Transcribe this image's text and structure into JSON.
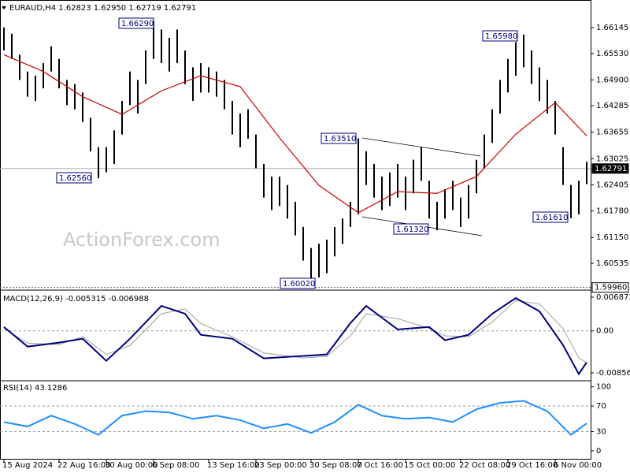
{
  "watermark": "ActionForex.com",
  "chart_data": [
    {
      "type": "range",
      "title": "EURAUD,H4 1.62823 1.62950 1.62719 1.62791",
      "color": "#000000",
      "categories": [
        "15 Aug 2024",
        null,
        null,
        null,
        null,
        null,
        null,
        "22 Aug 16:00",
        null,
        null,
        null,
        null,
        null,
        "30 Aug 00:00",
        null,
        null,
        null,
        null,
        null,
        "6 Sep 08:00",
        null,
        null,
        null,
        null,
        null,
        null,
        "13 Sep 16:00",
        null,
        null,
        null,
        null,
        null,
        "23 Sep 00:00",
        null,
        null,
        null,
        null,
        null,
        null,
        "30 Sep 08:00",
        null,
        null,
        null,
        null,
        null,
        "7 Oct 16:00",
        null,
        null,
        null,
        null,
        null,
        "15 Oct 00:00",
        null,
        null,
        null,
        null,
        null,
        null,
        "22 Oct 08:00",
        null,
        null,
        null,
        null,
        null,
        "29 Oct 16:00",
        null,
        null,
        null,
        null,
        null,
        "6 Nov 00:00",
        null,
        null,
        null,
        null
      ],
      "high": [
        1.6615,
        1.66,
        1.655,
        1.651,
        1.65,
        1.653,
        1.657,
        1.654,
        1.649,
        1.648,
        1.646,
        1.64,
        1.633,
        1.633,
        1.637,
        1.644,
        1.651,
        1.649,
        1.656,
        1.6629,
        1.661,
        1.659,
        1.661,
        1.656,
        1.652,
        1.653,
        1.652,
        1.651,
        1.649,
        1.644,
        1.641,
        1.642,
        1.636,
        1.629,
        1.626,
        1.626,
        1.624,
        1.62,
        1.614,
        1.609,
        1.61,
        1.611,
        1.614,
        1.616,
        1.62,
        1.6351,
        1.632,
        1.629,
        1.626,
        1.627,
        1.629,
        1.626,
        1.63,
        1.633,
        1.625,
        1.62,
        1.623,
        1.625,
        1.621,
        1.624,
        1.63,
        1.636,
        1.642,
        1.649,
        1.654,
        1.658,
        1.6598,
        1.656,
        1.652,
        1.649,
        1.644,
        1.633,
        1.624,
        1.625,
        1.6295
      ],
      "low": [
        1.656,
        1.654,
        1.649,
        1.645,
        1.644,
        1.647,
        1.651,
        1.647,
        1.643,
        1.642,
        1.639,
        1.632,
        1.6256,
        1.627,
        1.629,
        1.636,
        1.643,
        1.641,
        1.648,
        1.654,
        1.653,
        1.651,
        1.653,
        1.648,
        1.644,
        1.646,
        1.646,
        1.645,
        1.642,
        1.636,
        1.633,
        1.635,
        1.628,
        1.621,
        1.618,
        1.619,
        1.616,
        1.612,
        1.606,
        1.6002,
        1.602,
        1.603,
        1.607,
        1.61,
        1.614,
        1.617,
        1.624,
        1.621,
        1.618,
        1.619,
        1.621,
        1.618,
        1.622,
        1.625,
        1.616,
        1.6132,
        1.616,
        1.618,
        1.614,
        1.616,
        1.622,
        1.628,
        1.634,
        1.641,
        1.646,
        1.65,
        1.652,
        1.648,
        1.644,
        1.641,
        1.636,
        1.624,
        1.6161,
        1.617,
        1.6242
      ],
      "ma": {
        "color": "#cc0000",
        "x": [
          0,
          5,
          10,
          15,
          20,
          25,
          30,
          35,
          40,
          45,
          50,
          55,
          60,
          65,
          70,
          74
        ],
        "values": [
          1.655,
          1.651,
          1.645,
          1.6408,
          1.6464,
          1.65,
          1.6474,
          1.6352,
          1.6239,
          1.6174,
          1.6224,
          1.622,
          1.626,
          1.6361,
          1.6436,
          1.6357
        ]
      },
      "ylim": [
        1.59935,
        1.66802
      ],
      "yticks": [
        1.66145,
        {
          "value": 1.6553,
          "label": "1.65530"
        },
        {
          "value": 1.649,
          "label": "1.64900"
        },
        1.64285,
        1.63655,
        1.63025,
        1.62405,
        {
          "value": 1.6178,
          "label": "1.61780"
        },
        {
          "value": 1.6115,
          "label": "1.61150"
        },
        1.60535
      ],
      "level": {
        "value": 1.5996,
        "label": "1.59960"
      },
      "last_price": {
        "value": 1.62791,
        "label": "1.62791"
      },
      "annotations": [
        "1.66290",
        "1.62560",
        "1.63510",
        "1.61320",
        "1.60020",
        "1.65980",
        "1.61610"
      ]
    },
    {
      "type": "line",
      "title": "MACD(12,26,9) -0.005315 -0.006988",
      "series": [
        {
          "color": "#000080",
          "x": [
            0,
            3,
            7,
            10,
            13,
            16,
            20,
            23,
            25,
            29,
            33,
            38,
            41,
            44,
            46,
            50,
            54,
            56,
            59,
            62,
            65,
            68,
            71,
            73,
            74
          ],
          "values": [
            0.0008,
            -0.0032,
            -0.0024,
            -0.0016,
            -0.0061,
            -0.0016,
            0.0051,
            0.0035,
            -0.0008,
            -0.0016,
            -0.0056,
            -0.0051,
            -0.0048,
            0.0016,
            0.0051,
            0.0003,
            0.0008,
            -0.0019,
            -0.0008,
            0.0035,
            0.0067,
            0.004,
            -0.0029,
            -0.0088,
            -0.0064
          ]
        },
        {
          "color": "#a0a0a0",
          "x": [
            0,
            3,
            7,
            10,
            13,
            16,
            20,
            23,
            25,
            29,
            33,
            38,
            41,
            44,
            46,
            50,
            54,
            56,
            59,
            62,
            65,
            68,
            71,
            73,
            74
          ],
          "values": [
            0.0005,
            -0.0025,
            -0.0028,
            -0.0012,
            -0.0048,
            -0.003,
            0.0035,
            0.0045,
            0.0015,
            -0.0012,
            -0.0045,
            -0.0055,
            -0.0052,
            -0.001,
            0.0035,
            0.0025,
            0.0005,
            -0.001,
            -0.0012,
            0.0018,
            0.0062,
            0.0055,
            0.0005,
            -0.0055,
            -0.0065
          ]
        }
      ],
      "ylim": [
        -0.00969,
        0.008
      ],
      "yticks": [
        0.006873,
        {
          "value": 0,
          "label": "0.00"
        },
        -0.00856
      ],
      "levels": [
        0
      ]
    },
    {
      "type": "line",
      "title": "RSI(14) 43.1286",
      "series": [
        {
          "color": "#1e90ff",
          "x": [
            0,
            3,
            6,
            9,
            12,
            15,
            18,
            21,
            24,
            27,
            30,
            33,
            36,
            39,
            42,
            45,
            48,
            51,
            54,
            57,
            60,
            63,
            66,
            69,
            72,
            74
          ],
          "values": [
            45,
            38,
            55,
            42,
            25,
            55,
            62,
            60,
            50,
            55,
            48,
            35,
            42,
            28,
            45,
            72,
            55,
            50,
            52,
            45,
            65,
            75,
            78,
            62,
            25,
            43
          ]
        }
      ],
      "ylim": [
        -10,
        107
      ],
      "yticks": [
        100,
        70,
        30,
        0
      ],
      "levels": [
        70,
        30
      ]
    }
  ]
}
